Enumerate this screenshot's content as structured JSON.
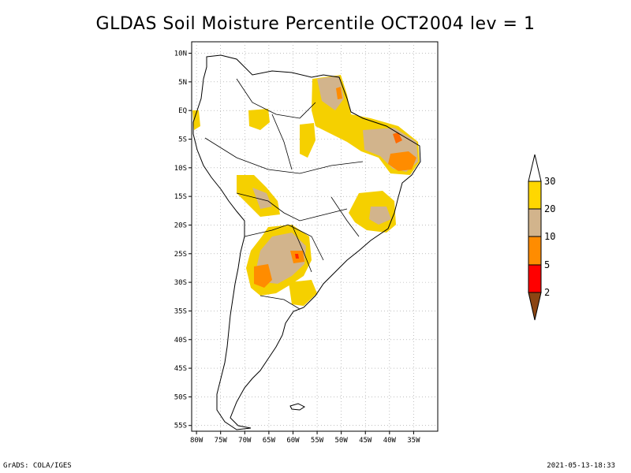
{
  "title": "GLDAS Soil Moisture Percentile OCT2004 lev = 1",
  "footer": {
    "left": "GrADS: COLA/IGES",
    "right": "2021-05-13-18:33"
  },
  "map": {
    "lon_range": [
      -81,
      -30
    ],
    "lat_range": [
      -56,
      12
    ],
    "lon_ticks": [
      "80W",
      "75W",
      "70W",
      "65W",
      "60W",
      "55W",
      "50W",
      "45W",
      "40W",
      "35W"
    ],
    "lat_ticks": [
      "10N",
      "5N",
      "EQ",
      "5S",
      "10S",
      "15S",
      "20S",
      "25S",
      "30S",
      "35S",
      "40S",
      "45S",
      "50S",
      "55S"
    ]
  },
  "colorbar": {
    "levels": [
      "30",
      "20",
      "10",
      "5",
      "2"
    ],
    "colors": [
      "#ffffff",
      "#ffd700",
      "#d2b48c",
      "#ff8c00",
      "#ff0000",
      "#8b4513"
    ]
  },
  "colors": {
    "yellow": "#f5d000",
    "tan": "#d2b48c",
    "orange": "#ff8c00",
    "red": "#ff2a00",
    "coast": "#000000"
  }
}
